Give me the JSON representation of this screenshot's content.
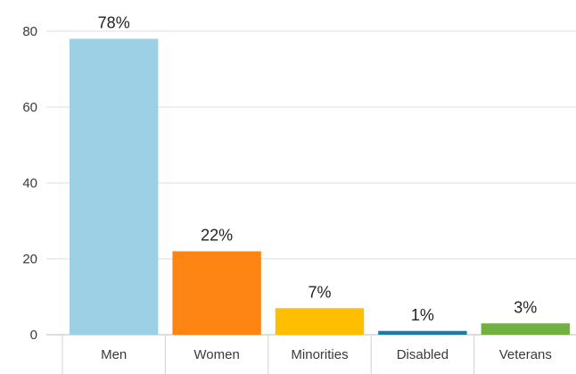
{
  "chart_data": {
    "type": "bar",
    "categories": [
      "Men",
      "Women",
      "Minorities",
      "Disabled",
      "Veterans"
    ],
    "values": [
      78,
      22,
      7,
      1,
      3
    ],
    "data_labels": [
      "78%",
      "22%",
      "7%",
      "1%",
      "3%"
    ],
    "colors": [
      "#9dcfe5",
      "#fe8514",
      "#ffbf00",
      "#1a7ba6",
      "#72b043"
    ],
    "yticks": [
      "0",
      "20",
      "40",
      "60",
      "80"
    ],
    "ylim": [
      0,
      80
    ],
    "grid": true,
    "legend": "none",
    "title": "",
    "xlabel": "",
    "ylabel": ""
  }
}
